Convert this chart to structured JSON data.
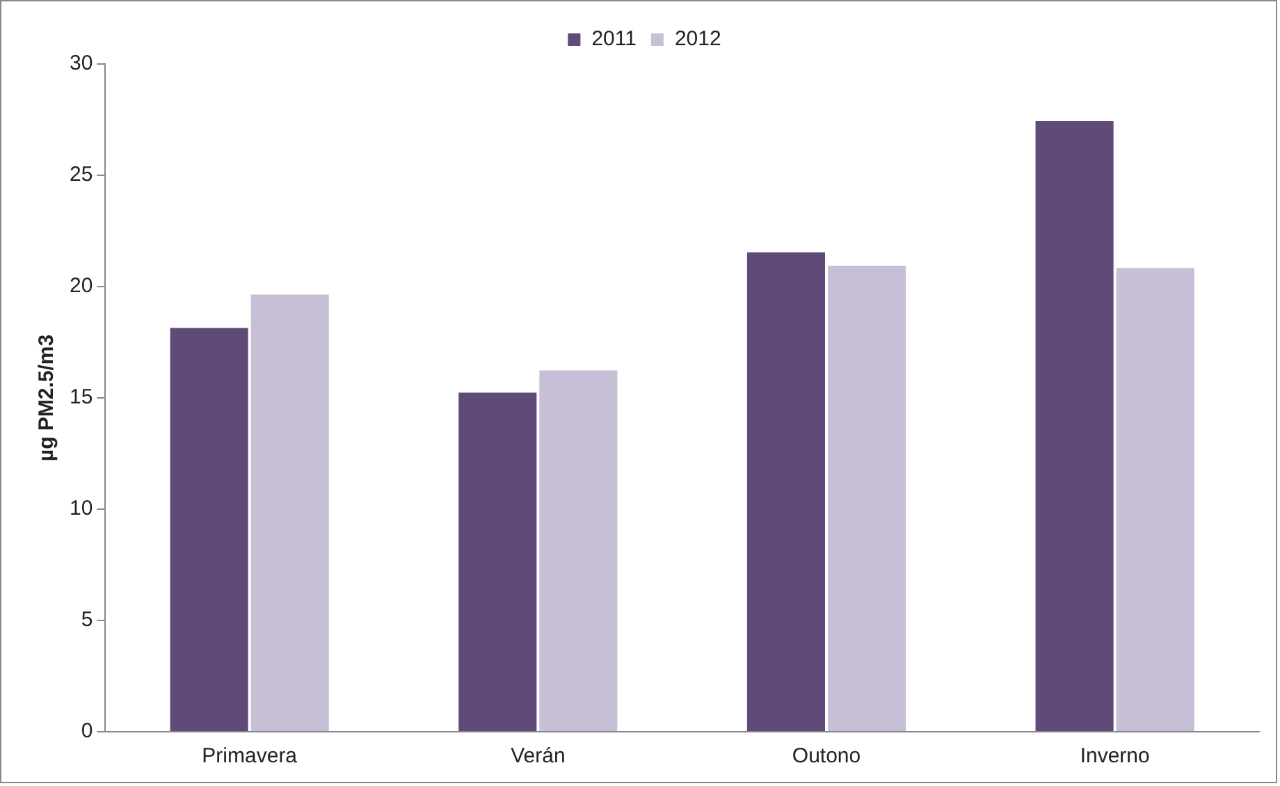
{
  "chart_data": {
    "type": "bar",
    "ylabel": "µg PM2.5/m3",
    "categories": [
      "Primavera",
      "Verán",
      "Outono",
      "Inverno"
    ],
    "series": [
      {
        "name": "2011",
        "color": "#5f4a78",
        "values": [
          18.2,
          15.3,
          21.6,
          27.5
        ]
      },
      {
        "name": "2012",
        "color": "#c7bfd6",
        "values": [
          19.7,
          16.3,
          21.0,
          20.9
        ]
      }
    ],
    "ylim": [
      0,
      30
    ],
    "yticks": [
      0,
      5,
      10,
      15,
      20,
      25,
      30
    ],
    "grid": false,
    "legend": "top"
  }
}
